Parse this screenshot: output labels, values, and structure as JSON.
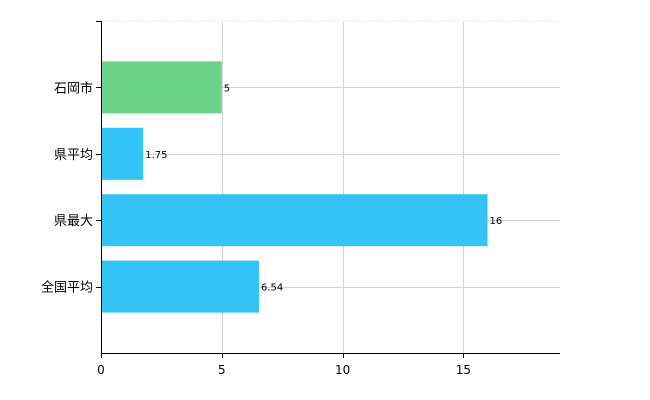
{
  "chart_data": {
    "type": "bar",
    "orientation": "horizontal",
    "title": "",
    "xlabel": "",
    "ylabel": "",
    "categories": [
      "石岡市",
      "県平均",
      "県最大",
      "全国平均"
    ],
    "values": [
      5,
      1.75,
      16,
      6.54
    ],
    "value_labels": [
      "5",
      "1.75",
      "16",
      "6.54"
    ],
    "bar_colors": [
      "#6dd38b",
      "#33c3f5",
      "#33c3f5",
      "#33c3f5"
    ],
    "xlim": [
      0,
      19
    ],
    "x_ticks": [
      0,
      5,
      10,
      15
    ],
    "x_tick_labels": [
      "0",
      "5",
      "10",
      "15"
    ],
    "grid": true,
    "gridline_color": "#d3d3d3"
  }
}
